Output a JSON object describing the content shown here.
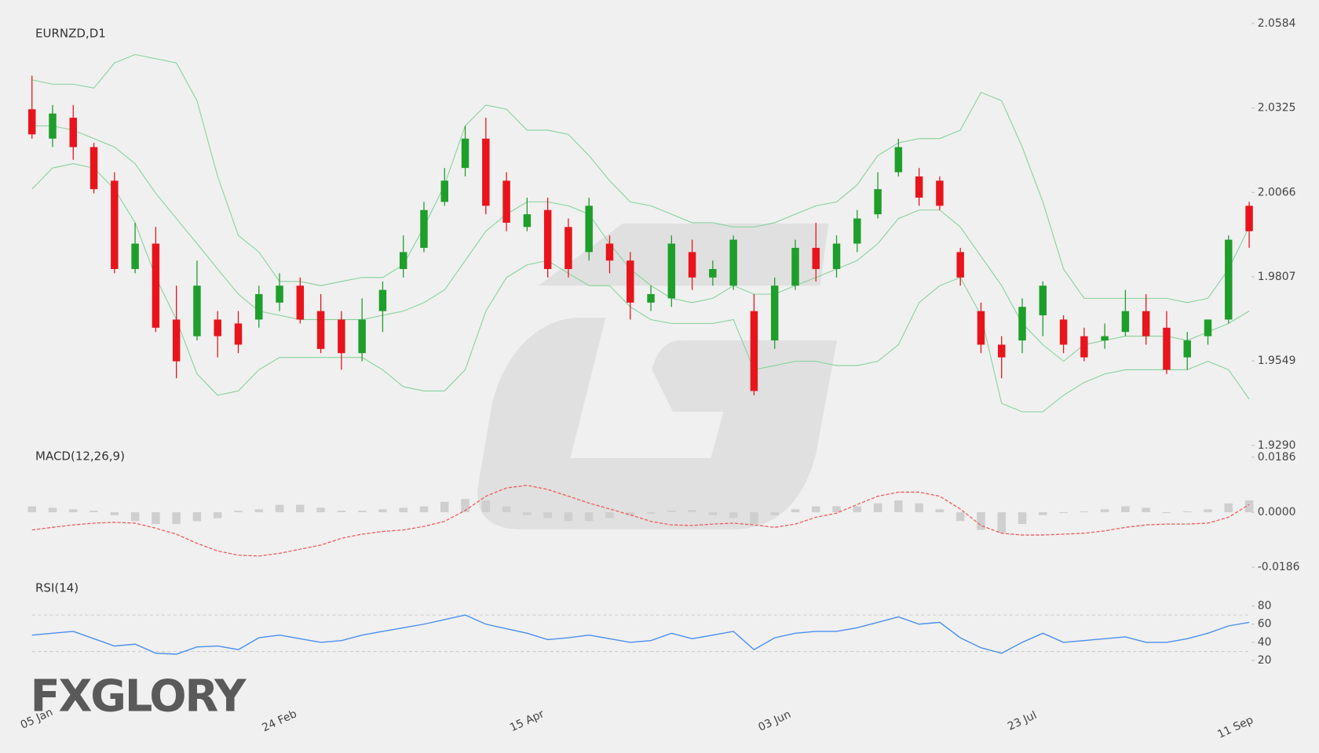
{
  "chart_data": [
    {
      "type": "candlestick",
      "title": "EURNZD,D1",
      "categories": [
        "05 Jan",
        null,
        null,
        null,
        null,
        null,
        null,
        null,
        null,
        null,
        null,
        null,
        "24 Feb",
        null,
        null,
        null,
        null,
        null,
        null,
        null,
        null,
        null,
        null,
        null,
        "15 Apr",
        null,
        null,
        null,
        null,
        null,
        null,
        null,
        null,
        null,
        null,
        null,
        "03 Jun",
        null,
        null,
        null,
        null,
        null,
        null,
        null,
        null,
        null,
        null,
        null,
        "23 Jul",
        null,
        null,
        null,
        null,
        null,
        null,
        null,
        null,
        null,
        null,
        "11 Sep"
      ],
      "open": [
        2.0321,
        2.0231,
        2.0295,
        2.0205,
        2.0102,
        1.9831,
        1.9909,
        1.9676,
        1.9625,
        1.9676,
        1.9664,
        1.9676,
        1.9728,
        1.978,
        1.9702,
        1.9676,
        1.9573,
        1.9702,
        1.9831,
        1.9896,
        2.0037,
        2.0141,
        2.0231,
        2.0102,
        1.996,
        2.0012,
        1.996,
        1.9883,
        1.9909,
        1.9857,
        1.9728,
        1.9741,
        1.9883,
        1.9805,
        1.978,
        1.9702,
        1.9612,
        1.978,
        1.9896,
        1.9831,
        1.9909,
        1.9999,
        2.0128,
        2.0115,
        2.0102,
        1.9883,
        1.9702,
        1.9599,
        1.9612,
        1.9689,
        1.9676,
        1.9625,
        1.9612,
        1.9638,
        1.9702,
        1.9651,
        1.956,
        1.9625,
        1.9676,
        2.0025
      ],
      "high": [
        2.0424,
        2.0334,
        2.0334,
        2.0218,
        2.0128,
        1.9973,
        1.996,
        1.978,
        1.9857,
        1.9702,
        1.9702,
        1.978,
        1.9818,
        1.9805,
        1.9754,
        1.9702,
        1.9741,
        1.9793,
        1.9934,
        2.0037,
        2.0141,
        2.027,
        2.0295,
        2.0128,
        2.005,
        2.005,
        1.9986,
        2.005,
        1.9934,
        1.9883,
        1.978,
        1.9934,
        1.9921,
        1.9857,
        1.9934,
        1.9754,
        1.9805,
        1.9921,
        1.9973,
        1.9934,
        2.0012,
        2.0128,
        2.0231,
        2.0141,
        2.0115,
        1.9896,
        1.9728,
        1.9625,
        1.9741,
        1.9793,
        1.9689,
        1.9651,
        1.9664,
        1.9767,
        1.9754,
        1.9702,
        1.9638,
        1.9676,
        1.9934,
        2.0037
      ],
      "low": [
        2.0231,
        2.0205,
        2.0166,
        2.0063,
        1.9818,
        1.9818,
        1.9638,
        1.9496,
        1.9612,
        1.956,
        1.9573,
        1.9651,
        1.9702,
        1.9664,
        1.9573,
        1.9522,
        1.9548,
        1.9638,
        1.9805,
        1.9883,
        2.0025,
        2.0115,
        1.9999,
        1.9947,
        1.9947,
        1.9805,
        1.9805,
        1.9857,
        1.9818,
        1.9676,
        1.9702,
        1.9715,
        1.9767,
        1.978,
        1.9767,
        1.9444,
        1.9586,
        1.9767,
        1.9793,
        1.9805,
        1.9883,
        1.9986,
        2.0115,
        2.0025,
        2.0012,
        1.978,
        1.9573,
        1.9496,
        1.9573,
        1.9625,
        1.9573,
        1.9548,
        1.9586,
        1.9625,
        1.9599,
        1.9509,
        1.9522,
        1.9599,
        1.9664,
        1.9896
      ],
      "close": [
        2.0244,
        2.0308,
        2.0205,
        2.0076,
        1.9831,
        1.9909,
        1.9651,
        1.9548,
        1.978,
        1.9625,
        1.9599,
        1.9754,
        1.978,
        1.9676,
        1.9586,
        1.9573,
        1.9676,
        1.9767,
        1.9883,
        2.0012,
        2.0102,
        2.0231,
        2.0025,
        1.9973,
        1.9999,
        1.9831,
        1.9831,
        2.0025,
        1.9857,
        1.9728,
        1.9754,
        1.9909,
        1.9805,
        1.9831,
        1.9921,
        1.9457,
        1.978,
        1.9896,
        1.9831,
        1.9909,
        1.9986,
        2.0076,
        2.0205,
        2.005,
        2.0025,
        1.9805,
        1.9599,
        1.956,
        1.9715,
        1.978,
        1.9599,
        1.956,
        1.9625,
        1.9702,
        1.9625,
        1.9522,
        1.9612,
        1.9676,
        1.9921,
        1.9947
      ],
      "up_color": "#1e9e2a",
      "down_color": "#e8141c",
      "bands": {
        "color": "#86d19a",
        "upper": [
          2.0411,
          2.0398,
          2.0398,
          2.0386,
          2.0463,
          2.0489,
          2.0476,
          2.0463,
          2.0347,
          2.0115,
          1.9934,
          1.9883,
          1.9793,
          1.9793,
          1.978,
          1.9793,
          1.9805,
          1.9805,
          1.9844,
          1.996,
          2.0089,
          2.027,
          2.0334,
          2.0321,
          2.0257,
          2.0257,
          2.0244,
          2.0179,
          2.0102,
          2.0037,
          2.0025,
          1.9999,
          1.9973,
          1.9973,
          1.996,
          1.996,
          1.9973,
          1.9999,
          2.0025,
          2.0037,
          2.0089,
          2.0179,
          2.0218,
          2.0231,
          2.0231,
          2.0257,
          2.0373,
          2.0347,
          2.0205,
          2.0037,
          1.9831,
          1.9741,
          1.9741,
          1.9741,
          1.9741,
          1.9741,
          1.9728,
          1.9741,
          1.9831,
          1.996
        ],
        "middle": [
          2.027,
          2.027,
          2.0257,
          2.0231,
          2.0205,
          2.0154,
          2.0063,
          1.9986,
          1.9909,
          1.9831,
          1.9754,
          1.9702,
          1.9689,
          1.9676,
          1.9676,
          1.9676,
          1.9676,
          1.9689,
          1.9702,
          1.9728,
          1.9767,
          1.9857,
          1.9947,
          1.9999,
          2.0037,
          2.0037,
          2.0025,
          1.9999,
          1.9909,
          1.9831,
          1.978,
          1.9741,
          1.9728,
          1.9741,
          1.978,
          1.9754,
          1.9754,
          1.978,
          1.9805,
          1.9831,
          1.9857,
          1.9909,
          1.9986,
          2.0012,
          2.0012,
          1.996,
          1.987,
          1.978,
          1.9664,
          1.9599,
          1.9548,
          1.9599,
          1.9612,
          1.9625,
          1.9625,
          1.9625,
          1.9612,
          1.9638,
          1.9664,
          1.9702
        ],
        "lower": [
          2.0076,
          2.0141,
          2.0154,
          2.0141,
          2.0076,
          1.9973,
          1.9805,
          1.9676,
          1.9509,
          1.9444,
          1.9457,
          1.9522,
          1.956,
          1.956,
          1.956,
          1.956,
          1.956,
          1.9522,
          1.947,
          1.9457,
          1.9457,
          1.9522,
          1.9702,
          1.9805,
          1.9844,
          1.9857,
          1.9818,
          1.978,
          1.978,
          1.9715,
          1.9676,
          1.9664,
          1.9664,
          1.9664,
          1.9676,
          1.9522,
          1.9535,
          1.9548,
          1.9548,
          1.9535,
          1.9535,
          1.9548,
          1.9599,
          1.9728,
          1.978,
          1.9805,
          1.9689,
          1.9419,
          1.9393,
          1.9393,
          1.9444,
          1.9483,
          1.9509,
          1.9522,
          1.9522,
          1.9522,
          1.9522,
          1.9548,
          1.9522,
          1.9432
        ]
      },
      "ylim": [
        1.929,
        2.0584
      ],
      "yticks": [
        {
          "value": 1.929,
          "label": "1.9290"
        },
        1.9549,
        1.9807,
        2.0066,
        2.0325,
        2.0584
      ]
    },
    {
      "type": "macd",
      "title": "MACD(12,26,9)",
      "histogram": {
        "color": "#cfcfcf",
        "values": [
          0.002,
          0.0015,
          0.001,
          0.0005,
          -0.001,
          -0.003,
          -0.004,
          -0.004,
          -0.003,
          -0.002,
          0.0005,
          0.001,
          0.0025,
          0.0025,
          0.0015,
          0.0005,
          0.0005,
          0.001,
          0.0015,
          0.002,
          0.0035,
          0.0045,
          0.004,
          0.002,
          -0.001,
          -0.002,
          -0.003,
          -0.003,
          -0.002,
          -0.001,
          -0.0005,
          0.0005,
          0.0008,
          -0.001,
          -0.002,
          -0.004,
          -0.001,
          0.001,
          0.002,
          0.002,
          0.002,
          0.003,
          0.004,
          0.003,
          0.001,
          -0.003,
          -0.006,
          -0.007,
          -0.004,
          -0.001,
          -0.0003,
          0.0003,
          0.001,
          0.002,
          0.0015,
          -0.0003,
          0.0003,
          0.001,
          0.003,
          0.004
        ]
      },
      "signal": {
        "color": "#f05a5a",
        "dashed": true,
        "values": [
          -0.006,
          -0.0051,
          -0.0043,
          -0.0037,
          -0.0034,
          -0.0037,
          -0.0054,
          -0.0074,
          -0.0105,
          -0.0131,
          -0.0145,
          -0.0148,
          -0.0139,
          -0.0125,
          -0.0111,
          -0.0088,
          -0.0074,
          -0.0065,
          -0.006,
          -0.0048,
          -0.0031,
          0.0006,
          0.0054,
          0.0082,
          0.0091,
          0.0077,
          0.0054,
          0.0031,
          0.0011,
          -0.0009,
          -0.0031,
          -0.0043,
          -0.0045,
          -0.004,
          -0.0037,
          -0.0043,
          -0.0051,
          -0.004,
          -0.0017,
          -0.0003,
          0.0026,
          0.0054,
          0.0068,
          0.0068,
          0.0054,
          0.0011,
          -0.0045,
          -0.0071,
          -0.0077,
          -0.0077,
          -0.0074,
          -0.0071,
          -0.0063,
          -0.0051,
          -0.0043,
          -0.004,
          -0.004,
          -0.0037,
          -0.0017,
          0.0026
        ]
      },
      "ylim": [
        -0.0186,
        0.0186
      ],
      "yticks": [
        -0.0186,
        {
          "value": 0,
          "label": "0.0000"
        },
        0.0186
      ]
    },
    {
      "type": "line",
      "title": "RSI(14)",
      "color": "#4a8ef0",
      "values": [
        48,
        50,
        52,
        44,
        36,
        38,
        28,
        27,
        35,
        36,
        32,
        45,
        48,
        44,
        40,
        42,
        48,
        52,
        56,
        60,
        65,
        70,
        60,
        55,
        50,
        43,
        45,
        48,
        44,
        40,
        42,
        50,
        44,
        48,
        52,
        32,
        45,
        50,
        52,
        52,
        56,
        62,
        68,
        60,
        62,
        45,
        34,
        28,
        40,
        50,
        40,
        42,
        44,
        46,
        40,
        40,
        44,
        50,
        58,
        62
      ],
      "levels": [
        70,
        30
      ],
      "ylim": [
        20,
        80
      ],
      "yticks": [
        20,
        40,
        60,
        80
      ]
    }
  ],
  "logo": "FXGLORY"
}
